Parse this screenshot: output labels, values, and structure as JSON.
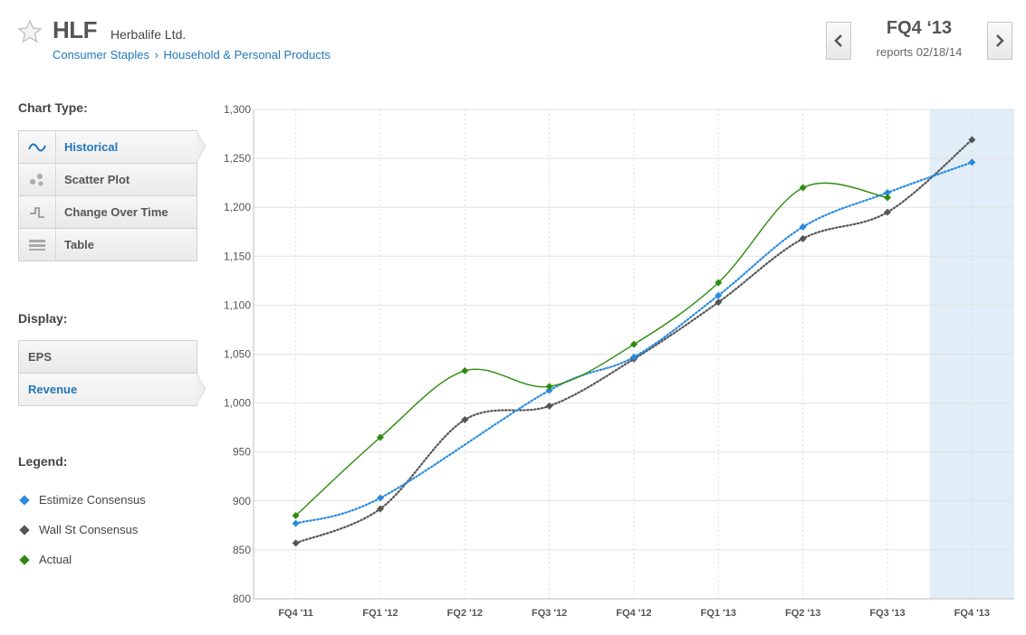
{
  "header": {
    "ticker": "HLF",
    "company": "Herbalife Ltd.",
    "sector": "Consumer Staples",
    "separator": "›",
    "industry": "Household & Personal Products",
    "period": "FQ4 ‘13",
    "reports": "reports 02/18/14"
  },
  "sidebar": {
    "chart_type_label": "Chart Type:",
    "chart_types": [
      {
        "label": "Historical",
        "icon": "wave-icon",
        "active": true
      },
      {
        "label": "Scatter Plot",
        "icon": "scatter-icon",
        "active": false
      },
      {
        "label": "Change Over Time",
        "icon": "step-icon",
        "active": false
      },
      {
        "label": "Table",
        "icon": "table-icon",
        "active": false
      }
    ],
    "display_label": "Display:",
    "display_options": [
      {
        "label": "EPS",
        "active": false
      },
      {
        "label": "Revenue",
        "active": true
      }
    ],
    "legend_label": "Legend:",
    "legend": [
      {
        "label": "Estimize Consensus",
        "color": "#2a8be0"
      },
      {
        "label": "Wall St Consensus",
        "color": "#555555"
      },
      {
        "label": "Actual",
        "color": "#2e8b10"
      }
    ]
  },
  "colors": {
    "accent": "#2277bb",
    "estimize": "#2a8be0",
    "wallst": "#555555",
    "actual": "#2e8b10",
    "highlight": "#e1eef7"
  },
  "chart_data": {
    "type": "line",
    "categories": [
      "FQ4 '11",
      "FQ1 '12",
      "FQ2 '12",
      "FQ3 '12",
      "FQ4 '12",
      "FQ1 '13",
      "FQ2 '13",
      "FQ3 '13",
      "FQ4 '13"
    ],
    "y_ticks": [
      "800",
      "850",
      "900",
      "950",
      "1,000",
      "1,050",
      "1,100",
      "1,150",
      "1,200",
      "1,250",
      "1,300"
    ],
    "ylim": [
      800,
      1300
    ],
    "highlighted_category": "FQ4 '13",
    "series": [
      {
        "name": "Estimize Consensus",
        "style": "dotted",
        "values": [
          877,
          903,
          null,
          1013,
          1047,
          1110,
          1180,
          1215,
          1246
        ]
      },
      {
        "name": "Wall St Consensus",
        "style": "dotted",
        "values": [
          857,
          892,
          983,
          997,
          1045,
          1103,
          1168,
          1195,
          1269
        ]
      },
      {
        "name": "Actual",
        "style": "solid",
        "values": [
          885,
          965,
          1033,
          1017,
          1060,
          1123,
          1220,
          1210,
          null
        ]
      }
    ]
  }
}
